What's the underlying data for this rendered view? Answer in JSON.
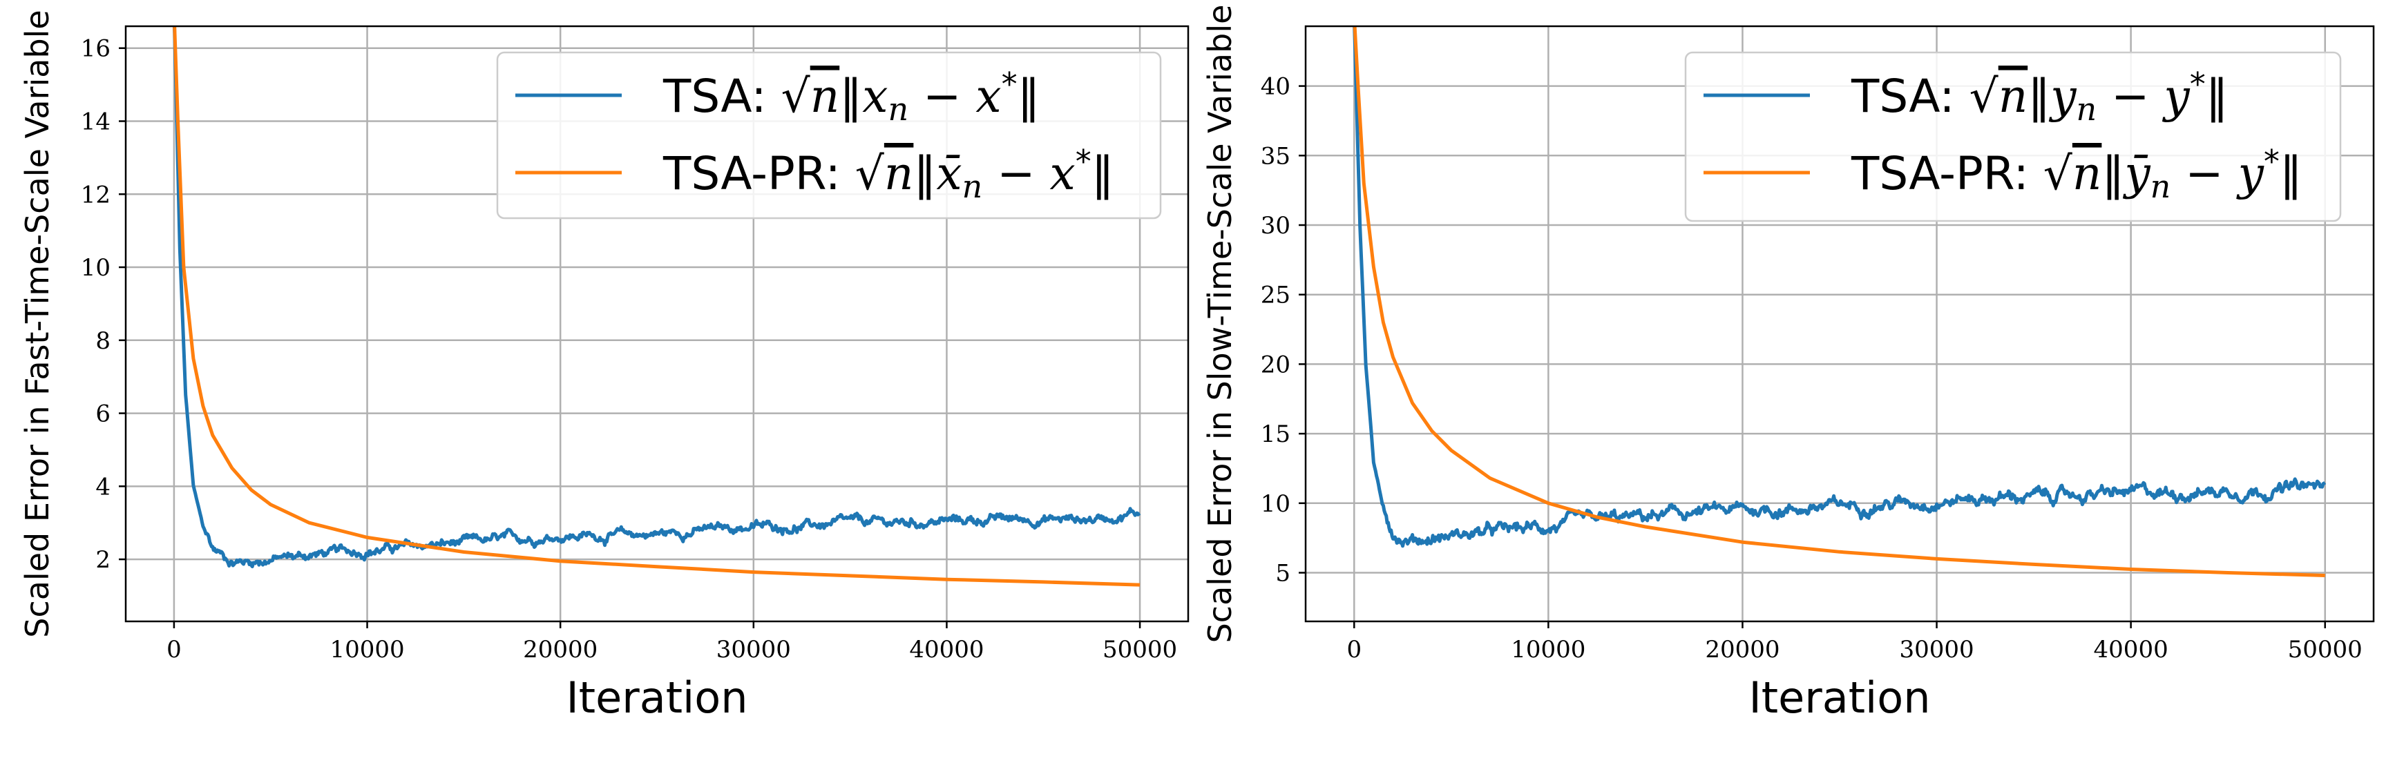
{
  "chart_data": [
    {
      "type": "line",
      "xlabel": "Iteration",
      "ylabel": "Scaled Error in Fast-Time-Scale Variable",
      "xlim": [
        -2500,
        52500
      ],
      "ylim": [
        0.3,
        16.6
      ],
      "xticks": [
        0,
        10000,
        20000,
        30000,
        40000,
        50000
      ],
      "yticks": [
        2,
        4,
        6,
        8,
        10,
        12,
        14,
        16
      ],
      "grid": true,
      "legend": "top-right",
      "series": [
        {
          "name": "TSA: √n‖x_n − x*‖",
          "color": "#1f77b4",
          "noisy": true,
          "x": [
            0,
            100,
            300,
            600,
            1000,
            1500,
            2000,
            3000,
            4000,
            5000,
            7500,
            10000,
            12500,
            15000,
            17500,
            20000,
            22500,
            25000,
            27500,
            30000,
            32500,
            35000,
            37500,
            40000,
            42500,
            45000,
            47500,
            50000
          ],
          "y": [
            17.0,
            15.0,
            10.5,
            6.5,
            4.0,
            2.9,
            2.3,
            1.95,
            1.95,
            2.0,
            2.15,
            2.25,
            2.35,
            2.45,
            2.55,
            2.65,
            2.65,
            2.7,
            2.8,
            2.9,
            2.9,
            3.0,
            3.0,
            3.05,
            3.1,
            3.1,
            3.1,
            3.3
          ]
        },
        {
          "name": "TSA-PR: √n‖x̄_n − x*‖",
          "color": "#ff7f0e",
          "noisy": false,
          "x": [
            0,
            200,
            500,
            1000,
            1500,
            2000,
            3000,
            4000,
            5000,
            7000,
            10000,
            15000,
            20000,
            25000,
            30000,
            35000,
            40000,
            45000,
            50000
          ],
          "y": [
            17.0,
            14.0,
            10.0,
            7.5,
            6.2,
            5.4,
            4.5,
            3.9,
            3.5,
            3.0,
            2.6,
            2.2,
            1.95,
            1.8,
            1.65,
            1.55,
            1.45,
            1.38,
            1.3
          ]
        }
      ]
    },
    {
      "type": "line",
      "xlabel": "Iteration",
      "ylabel": "Scaled Error in Slow-Time-Scale Variable",
      "xlim": [
        -2500,
        52500
      ],
      "ylim": [
        1.5,
        44.3
      ],
      "xticks": [
        0,
        10000,
        20000,
        30000,
        40000,
        50000
      ],
      "yticks": [
        5,
        10,
        15,
        20,
        25,
        30,
        35,
        40
      ],
      "grid": true,
      "legend": "top-right",
      "series": [
        {
          "name": "TSA: √n‖y_n − y*‖",
          "color": "#1f77b4",
          "noisy": true,
          "x": [
            0,
            100,
            300,
            600,
            1000,
            1500,
            2000,
            2500,
            3000,
            4000,
            5000,
            7500,
            10000,
            12500,
            15000,
            17500,
            20000,
            22500,
            25000,
            27500,
            30000,
            32500,
            35000,
            37500,
            40000,
            42500,
            45000,
            47500,
            50000
          ],
          "y": [
            45.0,
            40.0,
            30.0,
            20.0,
            13.0,
            9.5,
            8.0,
            7.5,
            7.4,
            7.5,
            7.7,
            8.0,
            8.3,
            8.7,
            9.0,
            9.3,
            9.5,
            9.6,
            9.8,
            10.0,
            10.2,
            10.4,
            10.5,
            10.6,
            10.7,
            10.8,
            10.9,
            11.0,
            11.2
          ]
        },
        {
          "name": "TSA-PR: √n‖ȳ_n − y*‖",
          "color": "#ff7f0e",
          "noisy": false,
          "x": [
            0,
            200,
            500,
            1000,
            1500,
            2000,
            3000,
            4000,
            5000,
            7000,
            10000,
            12500,
            15000,
            20000,
            25000,
            30000,
            35000,
            40000,
            45000,
            50000
          ],
          "y": [
            45.0,
            40.0,
            33.0,
            27.0,
            23.0,
            20.5,
            17.2,
            15.2,
            13.8,
            11.8,
            10.0,
            9.0,
            8.3,
            7.2,
            6.5,
            6.0,
            5.6,
            5.25,
            5.0,
            4.8
          ]
        }
      ]
    }
  ]
}
